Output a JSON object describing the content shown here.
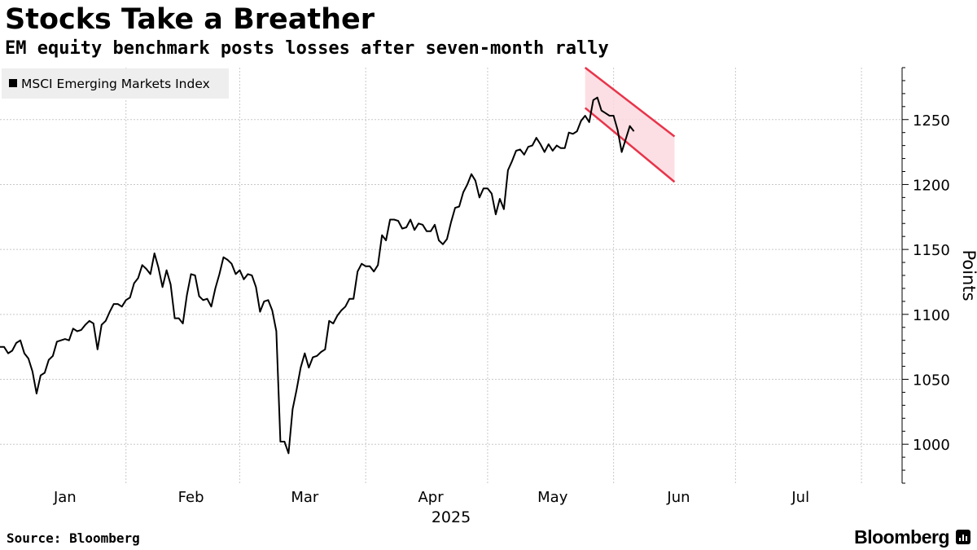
{
  "header": {
    "title": "Stocks Take a Breather",
    "subtitle": "EM equity benchmark posts losses after seven-month rally"
  },
  "footer": {
    "source": "Source: Bloomberg",
    "brand": "Bloomberg"
  },
  "colors": {
    "line": "#000000",
    "channel": "#e8344a",
    "channel_fill": "#fbd9df",
    "grid": "#c8c8c8",
    "legend_bg": "#eeeeee"
  },
  "chart_data": {
    "type": "line",
    "title": "Stocks Take a Breather",
    "subtitle": "EM equity benchmark posts losses after seven-month rally",
    "xlabel": "2025",
    "ylabel": "Points",
    "ylim": [
      970,
      1290
    ],
    "yticks": [
      1000,
      1050,
      1100,
      1150,
      1200,
      1250
    ],
    "ytick_labels": [
      "1000",
      "1050",
      "1100",
      "1150",
      "1200",
      "1250"
    ],
    "xlim": [
      -10,
      212
    ],
    "months": [
      {
        "label": "Jan",
        "day": 6
      },
      {
        "label": "Feb",
        "day": 37
      },
      {
        "label": "Mar",
        "day": 65
      },
      {
        "label": "Apr",
        "day": 96
      },
      {
        "label": "May",
        "day": 126
      },
      {
        "label": "Jun",
        "day": 157
      },
      {
        "label": "Jul",
        "day": 187
      }
    ],
    "month_boundaries": [
      21,
      49,
      80,
      110,
      141,
      171,
      202
    ],
    "year_label": "2025",
    "legend": [
      {
        "name": "MSCI Emerging Markets Index",
        "position": "top-left"
      }
    ],
    "series": [
      {
        "name": "MSCI Emerging Markets Index",
        "points": [
          [
            -10,
            1075
          ],
          [
            -9,
            1075
          ],
          [
            -8,
            1070
          ],
          [
            -7,
            1072
          ],
          [
            -6,
            1078
          ],
          [
            -5,
            1080
          ],
          [
            -4,
            1070
          ],
          [
            -3,
            1066
          ],
          [
            -2,
            1056
          ],
          [
            -1,
            1039
          ],
          [
            0,
            1053
          ],
          [
            1,
            1055
          ],
          [
            2,
            1065
          ],
          [
            3,
            1068
          ],
          [
            4,
            1079
          ],
          [
            5,
            1080
          ],
          [
            6,
            1081
          ],
          [
            7,
            1080
          ],
          [
            8,
            1089
          ],
          [
            9,
            1087
          ],
          [
            10,
            1088
          ],
          [
            11,
            1092
          ],
          [
            12,
            1095
          ],
          [
            13,
            1093
          ],
          [
            14,
            1073
          ],
          [
            15,
            1092
          ],
          [
            16,
            1095
          ],
          [
            17,
            1102
          ],
          [
            18,
            1108
          ],
          [
            19,
            1108
          ],
          [
            20,
            1106
          ],
          [
            21,
            1111
          ],
          [
            22,
            1113
          ],
          [
            23,
            1124
          ],
          [
            24,
            1128
          ],
          [
            25,
            1138
          ],
          [
            26,
            1135
          ],
          [
            27,
            1131
          ],
          [
            28,
            1147
          ],
          [
            29,
            1136
          ],
          [
            30,
            1121
          ],
          [
            31,
            1134
          ],
          [
            32,
            1123
          ],
          [
            33,
            1097
          ],
          [
            34,
            1097
          ],
          [
            35,
            1093
          ],
          [
            36,
            1115
          ],
          [
            37,
            1131
          ],
          [
            38,
            1130
          ],
          [
            39,
            1114
          ],
          [
            40,
            1111
          ],
          [
            41,
            1112
          ],
          [
            42,
            1106
          ],
          [
            43,
            1120
          ],
          [
            44,
            1131
          ],
          [
            45,
            1144
          ],
          [
            46,
            1142
          ],
          [
            47,
            1139
          ],
          [
            48,
            1131
          ],
          [
            49,
            1134
          ],
          [
            50,
            1127
          ],
          [
            51,
            1131
          ],
          [
            52,
            1130
          ],
          [
            53,
            1121
          ],
          [
            54,
            1102
          ],
          [
            55,
            1110
          ],
          [
            56,
            1111
          ],
          [
            57,
            1103
          ],
          [
            58,
            1087
          ],
          [
            59,
            1002
          ],
          [
            60,
            1002
          ],
          [
            61,
            993
          ],
          [
            62,
            1027
          ],
          [
            63,
            1042
          ],
          [
            64,
            1059
          ],
          [
            65,
            1070
          ],
          [
            66,
            1059
          ],
          [
            67,
            1067
          ],
          [
            68,
            1068
          ],
          [
            69,
            1071
          ],
          [
            70,
            1073
          ],
          [
            71,
            1095
          ],
          [
            72,
            1093
          ],
          [
            73,
            1099
          ],
          [
            74,
            1103
          ],
          [
            75,
            1106
          ],
          [
            76,
            1112
          ],
          [
            77,
            1112
          ],
          [
            78,
            1133
          ],
          [
            79,
            1139
          ],
          [
            80,
            1137
          ],
          [
            81,
            1137
          ],
          [
            82,
            1133
          ],
          [
            83,
            1138
          ],
          [
            84,
            1161
          ],
          [
            85,
            1157
          ],
          [
            86,
            1173
          ],
          [
            87,
            1173
          ],
          [
            88,
            1172
          ],
          [
            89,
            1166
          ],
          [
            90,
            1167
          ],
          [
            91,
            1173
          ],
          [
            92,
            1165
          ],
          [
            93,
            1170
          ],
          [
            94,
            1169
          ],
          [
            95,
            1164
          ],
          [
            96,
            1164
          ],
          [
            97,
            1169
          ],
          [
            98,
            1157
          ],
          [
            99,
            1154
          ],
          [
            100,
            1158
          ],
          [
            101,
            1171
          ],
          [
            102,
            1182
          ],
          [
            103,
            1183
          ],
          [
            104,
            1194
          ],
          [
            105,
            1200
          ],
          [
            106,
            1208
          ],
          [
            107,
            1203
          ],
          [
            108,
            1190
          ],
          [
            109,
            1197
          ],
          [
            110,
            1197
          ],
          [
            111,
            1193
          ],
          [
            112,
            1177
          ],
          [
            113,
            1189
          ],
          [
            114,
            1181
          ],
          [
            115,
            1211
          ],
          [
            116,
            1218
          ],
          [
            117,
            1226
          ],
          [
            118,
            1227
          ],
          [
            119,
            1223
          ],
          [
            120,
            1229
          ],
          [
            121,
            1230
          ],
          [
            122,
            1236
          ],
          [
            123,
            1231
          ],
          [
            124,
            1225
          ],
          [
            125,
            1231
          ],
          [
            126,
            1226
          ],
          [
            127,
            1230
          ],
          [
            128,
            1228
          ],
          [
            129,
            1228
          ],
          [
            130,
            1240
          ],
          [
            131,
            1239
          ],
          [
            132,
            1241
          ],
          [
            133,
            1249
          ],
          [
            134,
            1253
          ],
          [
            135,
            1248
          ],
          [
            136,
            1265
          ],
          [
            137,
            1267
          ],
          [
            138,
            1257
          ],
          [
            139,
            1255
          ],
          [
            140,
            1253
          ],
          [
            141,
            1253
          ],
          [
            142,
            1242
          ],
          [
            143,
            1225
          ],
          [
            144,
            1235
          ],
          [
            145,
            1245
          ],
          [
            146,
            1241
          ]
        ]
      }
    ],
    "annotations": [
      {
        "type": "channel",
        "upper": [
          [
            134,
            1290
          ],
          [
            156,
            1237
          ]
        ],
        "lower": [
          [
            134,
            1259
          ],
          [
            156,
            1202
          ]
        ]
      }
    ]
  }
}
